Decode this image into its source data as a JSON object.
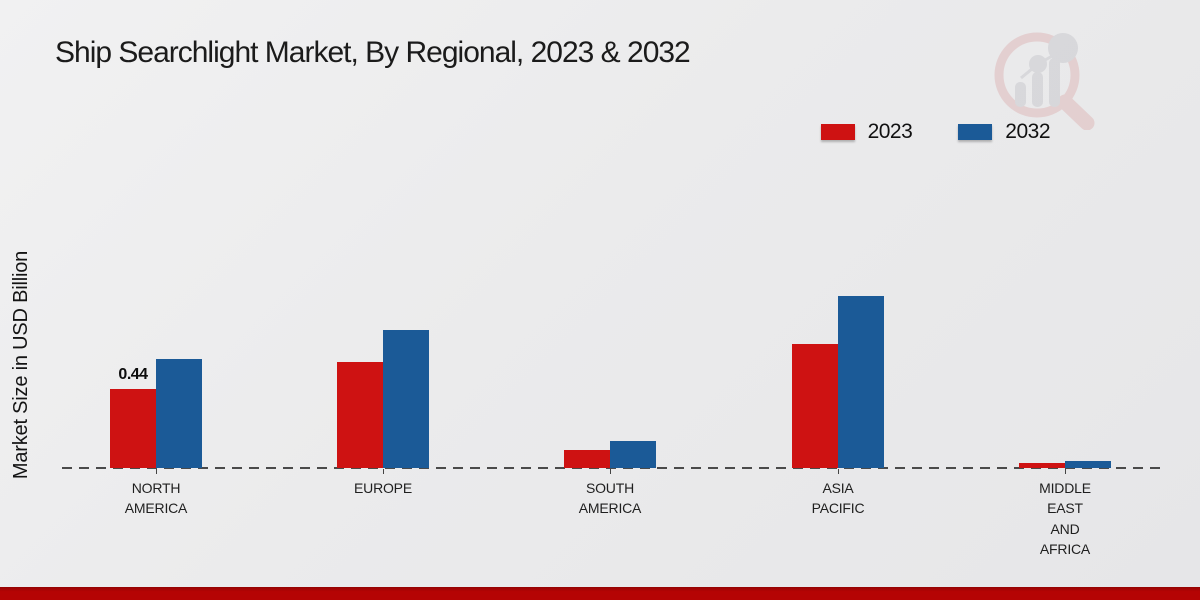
{
  "title": "Ship Searchlight Market, By Regional, 2023 & 2032",
  "y_axis_label": "Market Size in USD Billion",
  "colors": {
    "series_2023": "#ce1212",
    "series_2032": "#1b5a97",
    "footer_strip": "#b50404",
    "baseline_dash": "#4a4a4a",
    "background": "#ebebec",
    "title_text": "#1b1b1b"
  },
  "legend": {
    "position": "top-right",
    "items": [
      {
        "label": "2023",
        "color": "#ce1212"
      },
      {
        "label": "2032",
        "color": "#1b5a97"
      }
    ]
  },
  "watermark_icon": "magnifier-bar-chart-logo",
  "chart_data": {
    "type": "bar",
    "title": "Ship Searchlight Market, By Regional, 2023 & 2032",
    "xlabel": "",
    "ylabel": "Market Size in USD Billion",
    "grid": false,
    "baseline_value": 0,
    "ylim": [
      0,
      1.1
    ],
    "legend_position": "top-right",
    "categories": [
      "NORTH AMERICA",
      "EUROPE",
      "SOUTH AMERICA",
      "ASIA PACIFIC",
      "MIDDLE EAST AND AFRICA"
    ],
    "category_label_lines": [
      "NORTH\nAMERICA",
      "EUROPE",
      "SOUTH\nAMERICA",
      "ASIA\nPACIFIC",
      "MIDDLE\nEAST\nAND\nAFRICA"
    ],
    "series": [
      {
        "name": "2023",
        "color": "#ce1212",
        "values": [
          0.44,
          0.59,
          0.1,
          0.69,
          0.03
        ],
        "data_labels": [
          "0.44",
          "",
          "",
          "",
          ""
        ]
      },
      {
        "name": "2032",
        "color": "#1b5a97",
        "values": [
          0.61,
          0.77,
          0.15,
          0.96,
          0.04
        ],
        "data_labels": [
          "",
          "",
          "",
          "",
          ""
        ]
      }
    ]
  }
}
